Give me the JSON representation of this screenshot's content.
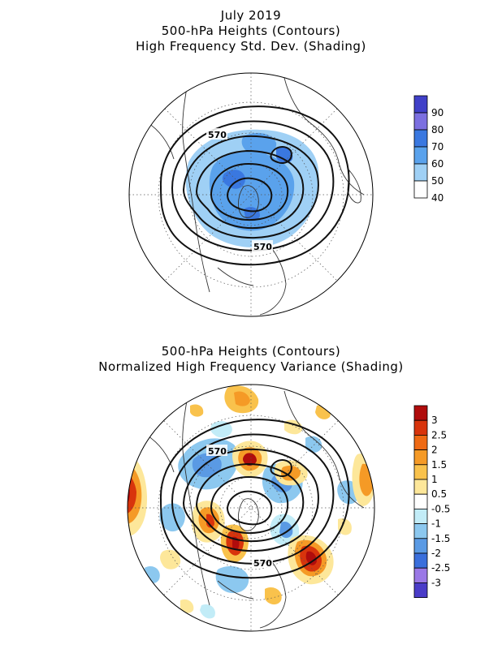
{
  "top_panel": {
    "title_lines": [
      "July 2019",
      "500-hPa Heights (Contours)",
      "High Frequency Std. Dev. (Shading)"
    ],
    "contour_labels": [
      "570",
      "570"
    ],
    "colorbar": {
      "labels": [
        "90",
        "80",
        "70",
        "60",
        "50",
        "40"
      ],
      "colors": [
        "#4040c8",
        "#7b6fe0",
        "#3a78e0",
        "#5aa2ec",
        "#9fd0f5",
        "#ffffff"
      ]
    }
  },
  "bottom_panel": {
    "title_lines": [
      "500-hPa Heights (Contours)",
      "Normalized High Frequency Variance (Shading)"
    ],
    "contour_labels": [
      "570",
      "570"
    ],
    "colorbar": {
      "labels": [
        "3",
        "2.5",
        "2",
        "1.5",
        "1",
        "0.5",
        "-0.5",
        "-1",
        "-1.5",
        "-2",
        "-2.5",
        "-3"
      ],
      "colors": [
        "#b00c0c",
        "#d8340c",
        "#ef6a14",
        "#f59a26",
        "#f9c24c",
        "#fde79a",
        "#ffffff",
        "#c2ecf7",
        "#8cc8ef",
        "#5a9ae4",
        "#3a6fdc",
        "#9a78e6",
        "#4a3cc8"
      ]
    }
  }
}
